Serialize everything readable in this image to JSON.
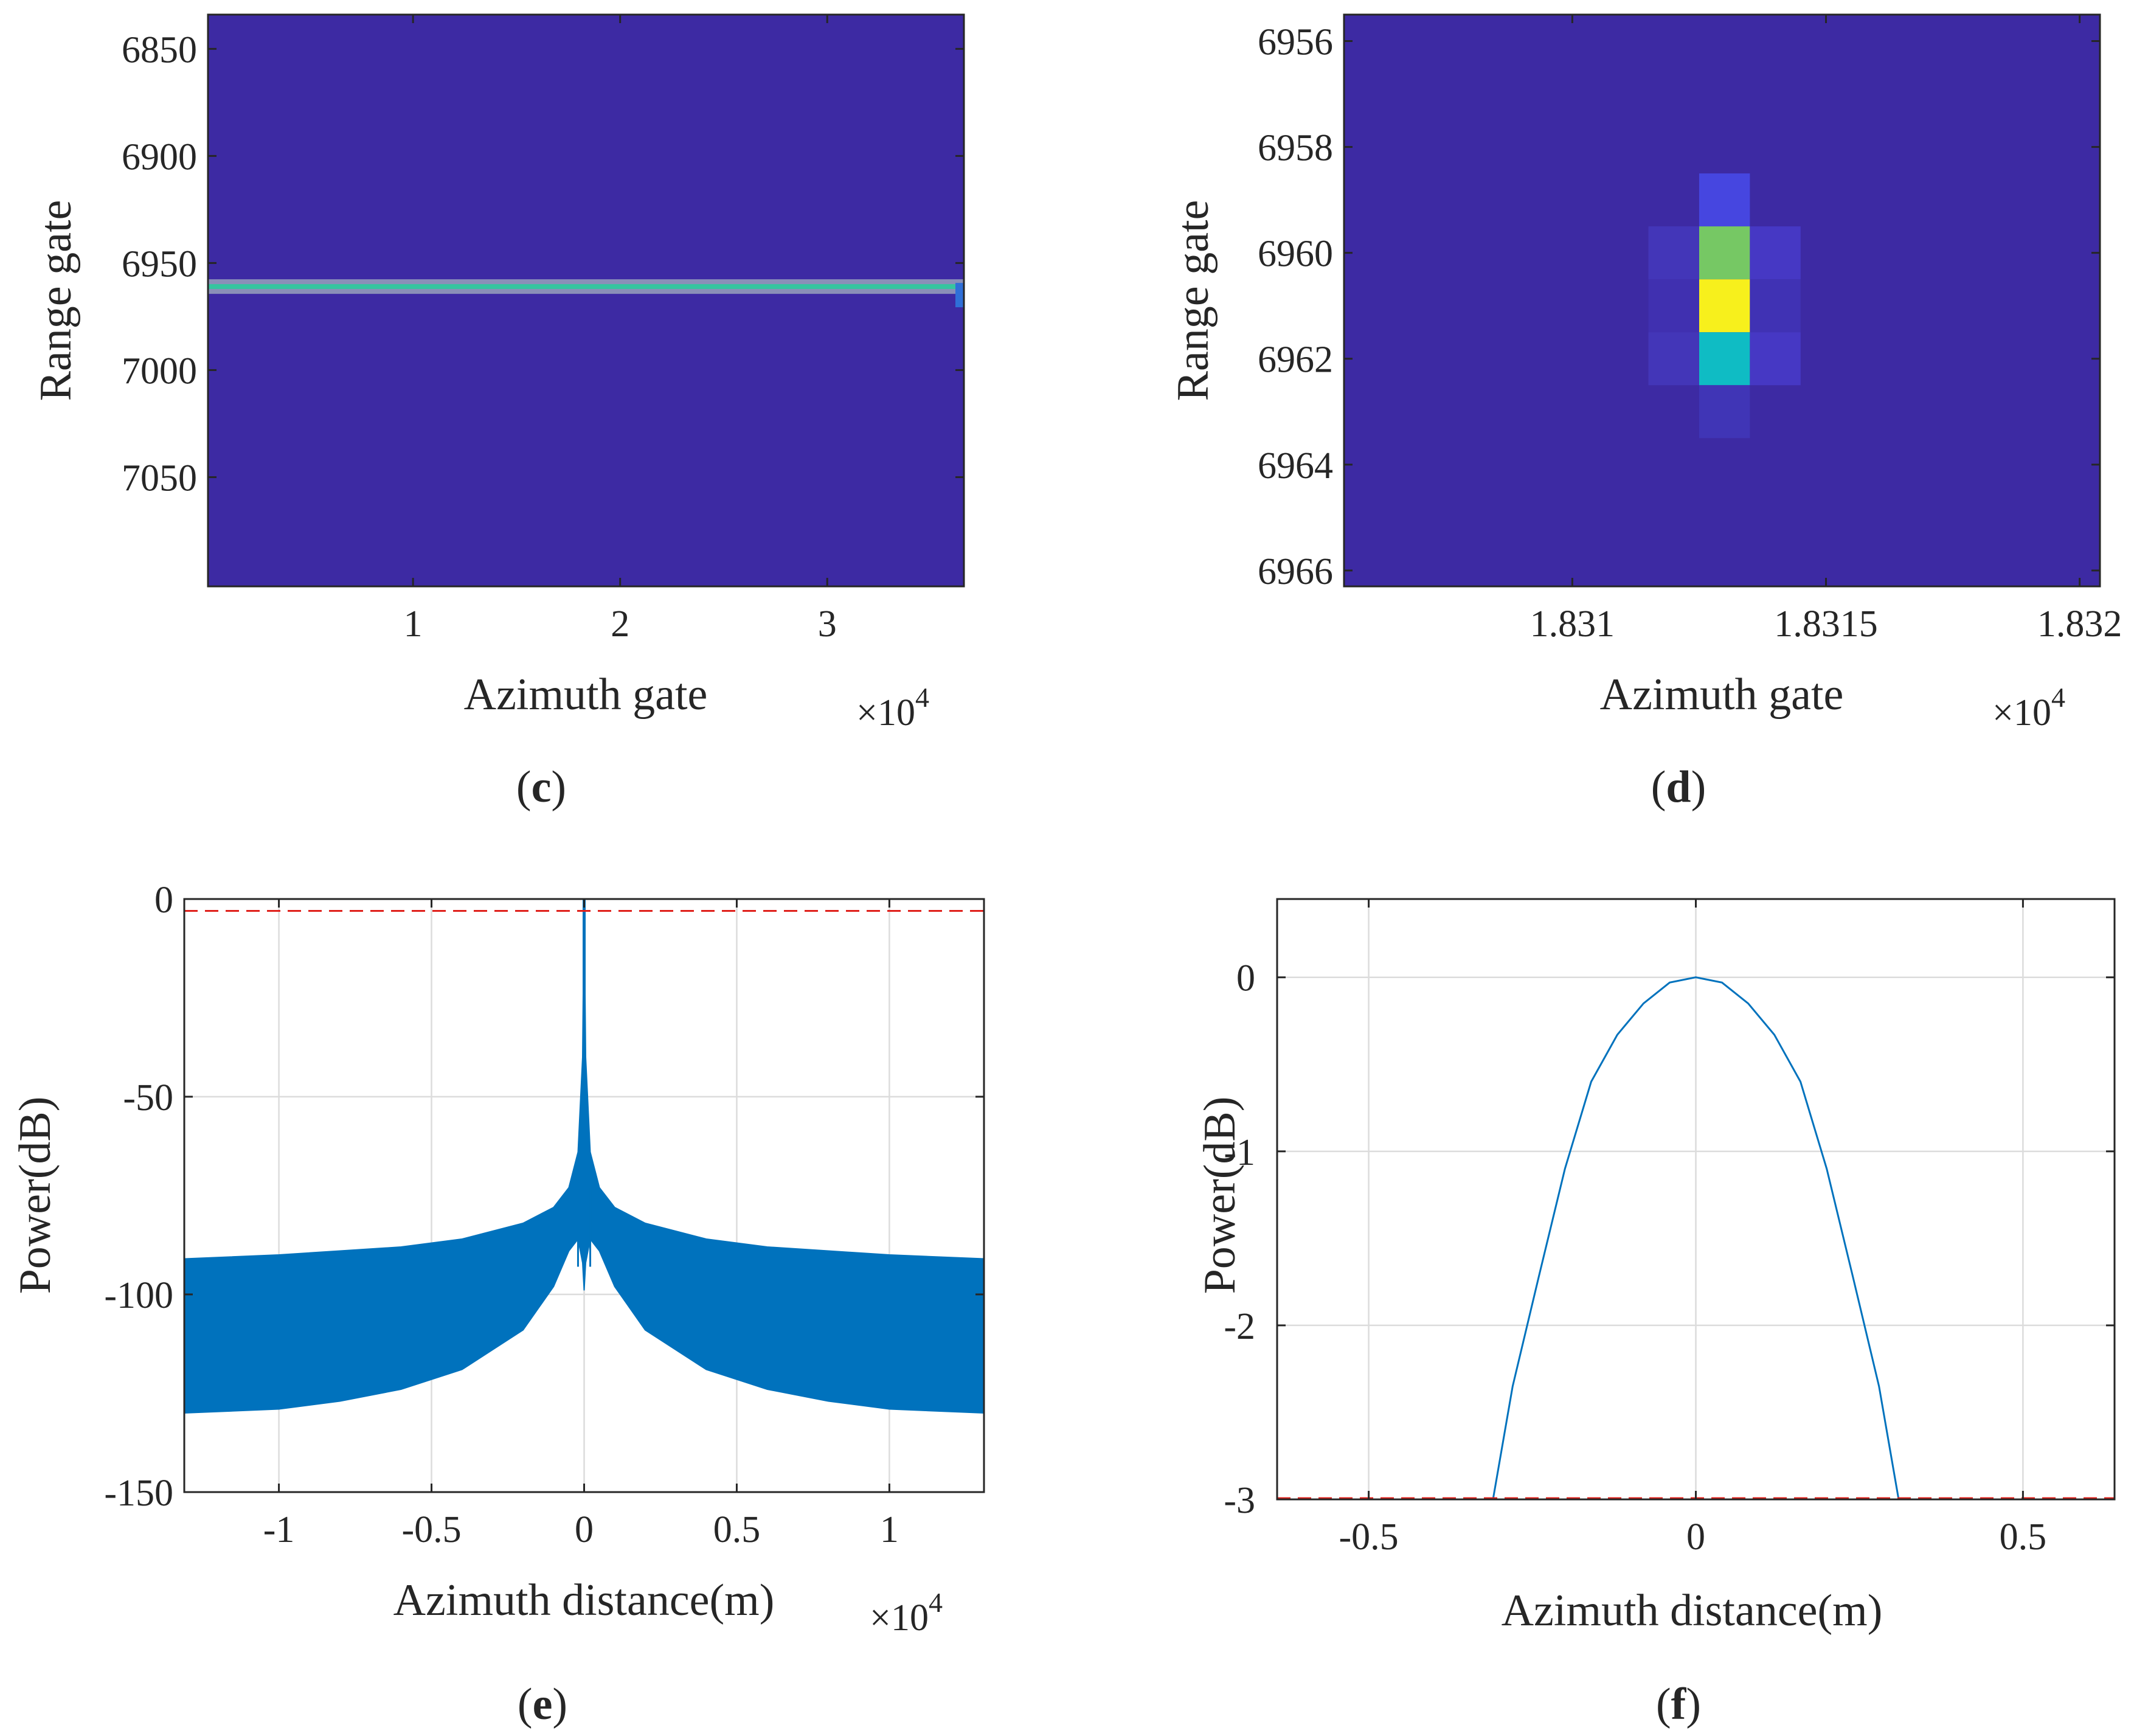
{
  "chart_data": [
    {
      "panel": "c",
      "type": "heatmap",
      "caption": "c",
      "xlabel": "Azimuth gate",
      "ylabel": "Range gate",
      "x_multiplier": "×10",
      "x_exponent": "4",
      "xticks": [
        "1",
        "2",
        "3"
      ],
      "xtick_values": [
        1,
        2,
        3
      ],
      "xlim": [
        0.01,
        3.66
      ],
      "yticks": [
        "6850",
        "6900",
        "6950",
        "7000",
        "7050"
      ],
      "ytick_values": [
        6850,
        6900,
        6950,
        7000,
        7050
      ],
      "ylim": [
        6834,
        7101
      ],
      "background_color": "#3d2aa3",
      "features": [
        {
          "name": "target-range-line",
          "range_gate": 6961,
          "x_from": 0.01,
          "x_to": 3.66,
          "color": "#35c59f"
        }
      ]
    },
    {
      "panel": "d",
      "type": "heatmap",
      "caption": "d",
      "xlabel": "Azimuth gate",
      "ylabel": "Range gate",
      "x_multiplier": "×10",
      "x_exponent": "4",
      "xticks": [
        "1.831",
        "1.8315",
        "1.832"
      ],
      "xtick_values": [
        1.831,
        1.8315,
        1.832
      ],
      "xlim": [
        1.83055,
        1.83204
      ],
      "yticks": [
        "6956",
        "6958",
        "6960",
        "6962",
        "6964",
        "6966"
      ],
      "ytick_values": [
        6956,
        6958,
        6960,
        6962,
        6964,
        6966
      ],
      "ylim": [
        6955.5,
        6966.3
      ],
      "background_color": "#3d2aa3",
      "cells": [
        {
          "x": 18313,
          "y": 6959,
          "color": "#4646e0"
        },
        {
          "x": 18313,
          "y": 6960,
          "color": "#76c864"
        },
        {
          "x": 18313,
          "y": 6961,
          "color": "#f7f01c"
        },
        {
          "x": 18313,
          "y": 6962,
          "color": "#0fbcc4"
        },
        {
          "x": 18313,
          "y": 6963,
          "color": "#4035b6"
        },
        {
          "x": 18312,
          "y": 6960,
          "color": "#4336b8"
        },
        {
          "x": 18312,
          "y": 6961,
          "color": "#4030b0"
        },
        {
          "x": 18312,
          "y": 6962,
          "color": "#4336b8"
        },
        {
          "x": 18314,
          "y": 6960,
          "color": "#4638c4"
        },
        {
          "x": 18314,
          "y": 6961,
          "color": "#4032b4"
        },
        {
          "x": 18314,
          "y": 6962,
          "color": "#4638c4"
        }
      ]
    },
    {
      "panel": "e",
      "type": "area",
      "caption": "e",
      "xlabel": "Azimuth distance(m)",
      "ylabel": "Power(dB)",
      "x_multiplier": "×10",
      "x_exponent": "4",
      "xticks": [
        "-1",
        "-0.5",
        "0",
        "0.5",
        "1"
      ],
      "xtick_values": [
        -1,
        -0.5,
        0,
        0.5,
        1
      ],
      "xlim": [
        -1.31,
        1.31
      ],
      "yticks": [
        "0",
        "-50",
        "-100",
        "-150"
      ],
      "ytick_values": [
        0,
        -50,
        -100,
        -150
      ],
      "ylim": [
        -150,
        0
      ],
      "grid": true,
      "threshold_db": -3,
      "series": [
        {
          "name": "azimuth profile envelope",
          "color": "#0072bd",
          "x": [
            -1.31,
            -1.0,
            -0.8,
            -0.6,
            -0.4,
            -0.2,
            -0.1,
            -0.05,
            -0.02,
            -0.005,
            0,
            0.005,
            0.02,
            0.05,
            0.1,
            0.2,
            0.4,
            0.6,
            0.8,
            1.0,
            1.31
          ],
          "upper": [
            -91,
            -90,
            -89,
            -88,
            -86,
            -82,
            -78,
            -73,
            -64,
            -40,
            0,
            -40,
            -64,
            -73,
            -78,
            -82,
            -86,
            -88,
            -89,
            -90,
            -91
          ],
          "lower": [
            -130,
            -129,
            -127,
            -124,
            -119,
            -109,
            -98,
            -89,
            -86,
            -92,
            -99,
            -92,
            -86,
            -89,
            -98,
            -109,
            -119,
            -124,
            -127,
            -129,
            -130
          ]
        }
      ]
    },
    {
      "panel": "f",
      "type": "line",
      "caption": "f",
      "xlabel": "Azimuth distance(m)",
      "ylabel": "Power(dB)",
      "xticks": [
        "-0.5",
        "0",
        "0.5"
      ],
      "xtick_values": [
        -0.5,
        0,
        0.5
      ],
      "xlim": [
        -0.64,
        0.64
      ],
      "yticks": [
        "0",
        "-1",
        "-2",
        "-3"
      ],
      "ytick_values": [
        0,
        -1,
        -2,
        -3
      ],
      "ylim": [
        -3,
        0.45
      ],
      "grid": true,
      "threshold_db": -3,
      "series": [
        {
          "name": "mainlobe",
          "color": "#0072bd",
          "x": [
            -0.31,
            -0.28,
            -0.24,
            -0.2,
            -0.16,
            -0.12,
            -0.08,
            -0.04,
            0,
            0.04,
            0.08,
            0.12,
            0.16,
            0.2,
            0.24,
            0.28,
            0.31
          ],
          "y": [
            -3.0,
            -2.35,
            -1.72,
            -1.1,
            -0.6,
            -0.33,
            -0.15,
            -0.03,
            0,
            -0.03,
            -0.15,
            -0.33,
            -0.6,
            -1.1,
            -1.72,
            -2.35,
            -3.0
          ]
        }
      ]
    }
  ]
}
